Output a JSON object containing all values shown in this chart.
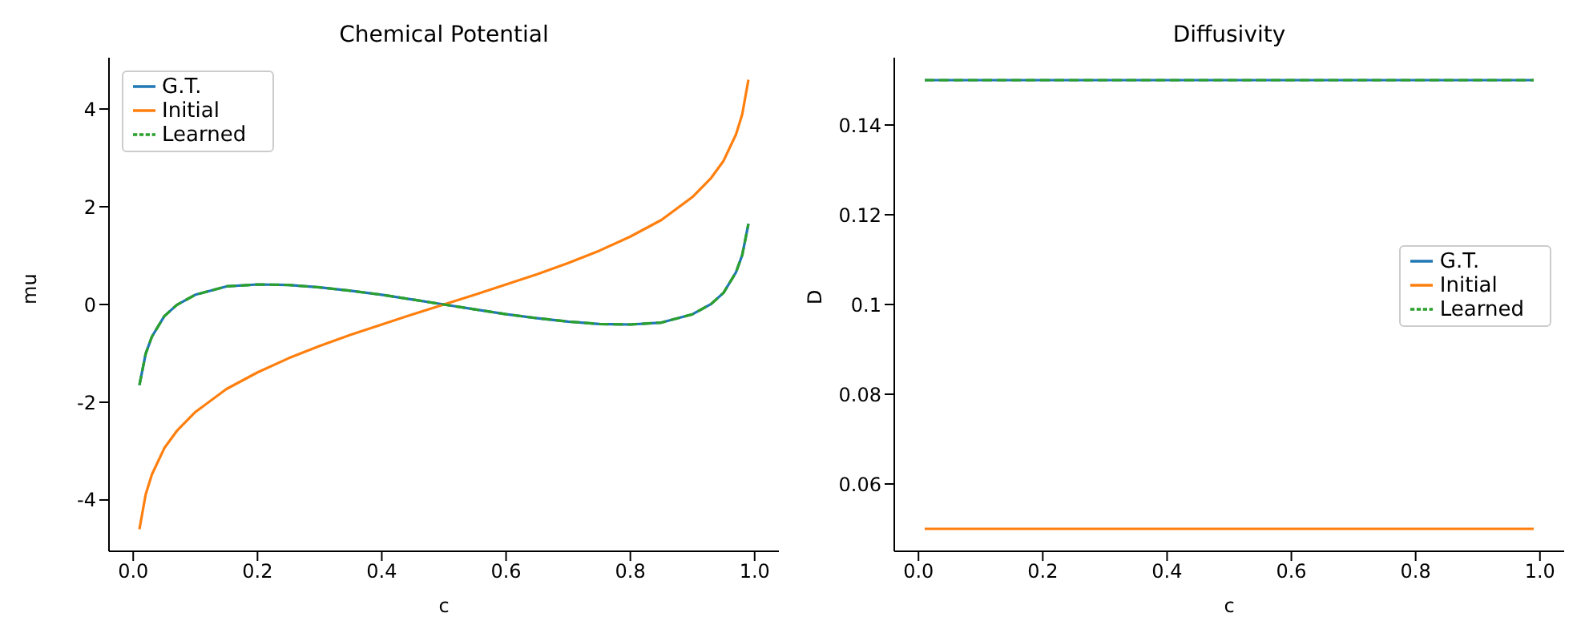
{
  "chart_data": [
    {
      "type": "line",
      "title": "Chemical Potential",
      "xlabel": "c",
      "ylabel": "mu",
      "x": [
        0.01,
        0.02,
        0.03,
        0.05,
        0.07,
        0.1,
        0.15,
        0.2,
        0.25,
        0.3,
        0.35,
        0.4,
        0.45,
        0.5,
        0.55,
        0.6,
        0.65,
        0.7,
        0.75,
        0.8,
        0.85,
        0.9,
        0.93,
        0.95,
        0.97,
        0.98,
        0.99
      ],
      "series": [
        {
          "name": "G.T.",
          "color": "#1f77b4",
          "line_style": "solid",
          "values": [
            -1.65,
            -1.01,
            -0.66,
            -0.24,
            -0.01,
            0.2,
            0.37,
            0.41,
            0.4,
            0.35,
            0.28,
            0.2,
            0.1,
            0,
            -0.1,
            -0.2,
            -0.28,
            -0.35,
            -0.4,
            -0.41,
            -0.37,
            -0.2,
            0.01,
            0.24,
            0.66,
            1.01,
            1.65
          ]
        },
        {
          "name": "Initial",
          "color": "#ff7f0e",
          "line_style": "solid",
          "values": [
            -4.6,
            -3.89,
            -3.48,
            -2.94,
            -2.59,
            -2.2,
            -1.73,
            -1.39,
            -1.1,
            -0.85,
            -0.62,
            -0.41,
            -0.2,
            0,
            0.2,
            0.41,
            0.62,
            0.85,
            1.1,
            1.39,
            1.73,
            2.2,
            2.59,
            2.94,
            3.48,
            3.89,
            4.6
          ]
        },
        {
          "name": "Learned",
          "color": "#2ca02c",
          "line_style": "dashed",
          "values": [
            -1.65,
            -1.01,
            -0.66,
            -0.24,
            -0.01,
            0.2,
            0.37,
            0.41,
            0.4,
            0.35,
            0.28,
            0.2,
            0.1,
            0,
            -0.1,
            -0.2,
            -0.28,
            -0.35,
            -0.4,
            -0.41,
            -0.37,
            -0.2,
            0.01,
            0.24,
            0.66,
            1.01,
            1.65
          ]
        }
      ],
      "xlim": [
        -0.039,
        1.039
      ],
      "xticks": [
        {
          "value": 0,
          "label": "0.0"
        },
        {
          "value": 0.2,
          "label": "0.2"
        },
        {
          "value": 0.4,
          "label": "0.4"
        },
        {
          "value": 0.6,
          "label": "0.6"
        },
        {
          "value": 0.8,
          "label": "0.8"
        },
        {
          "value": 1,
          "label": "1.0"
        }
      ],
      "ylim": [
        -5.05,
        5.05
      ],
      "yticks": [
        -4,
        -2,
        0,
        2,
        4
      ],
      "legend": "top left",
      "marker": "none"
    },
    {
      "type": "line",
      "title": "Diffusivity",
      "xlabel": "c",
      "ylabel": "D",
      "x": [
        0.01,
        0.99
      ],
      "series": [
        {
          "name": "G.T.",
          "color": "#1f77b4",
          "line_style": "solid",
          "values": [
            0.15,
            0.15
          ]
        },
        {
          "name": "Initial",
          "color": "#ff7f0e",
          "line_style": "solid",
          "values": [
            0.05,
            0.05
          ]
        },
        {
          "name": "Learned",
          "color": "#2ca02c",
          "line_style": "dashed",
          "values": [
            0.15,
            0.15
          ]
        }
      ],
      "xlim": [
        -0.039,
        1.039
      ],
      "xticks": [
        {
          "value": 0,
          "label": "0.0"
        },
        {
          "value": 0.2,
          "label": "0.2"
        },
        {
          "value": 0.4,
          "label": "0.4"
        },
        {
          "value": 0.6,
          "label": "0.6"
        },
        {
          "value": 0.8,
          "label": "0.8"
        },
        {
          "value": 1,
          "label": "1.0"
        }
      ],
      "ylim": [
        0.045,
        0.155
      ],
      "yticks": [
        0.06,
        0.08,
        0.1,
        0.12,
        0.14
      ],
      "legend": "right",
      "marker": "none"
    }
  ]
}
